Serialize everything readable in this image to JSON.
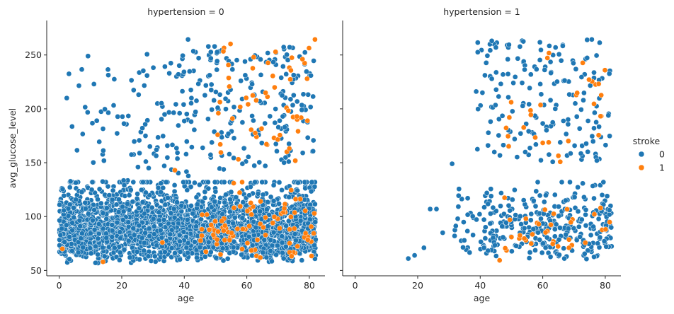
{
  "colors": {
    "no_stroke": "#1f77b4",
    "stroke": "#ff7f0e",
    "axis": "#262626"
  },
  "legend": {
    "title": "stroke",
    "entries": [
      {
        "label": "0",
        "color": "#1f77b4"
      },
      {
        "label": "1",
        "color": "#ff7f0e"
      }
    ]
  },
  "chart_data": [
    {
      "type": "scatter",
      "title": "hypertension = 0",
      "xlabel": "age",
      "ylabel": "avg_glucose_level",
      "xlim": [
        -4,
        85
      ],
      "ylim": [
        45,
        282
      ],
      "xticks": [
        0,
        20,
        40,
        60,
        80
      ],
      "yticks": [
        50,
        100,
        150,
        200,
        250
      ],
      "grid": false,
      "series": [
        {
          "name": "0",
          "color": "#1f77b4",
          "values": []
        },
        {
          "name": "1",
          "color": "#ff7f0e",
          "values": []
        }
      ]
    },
    {
      "type": "scatter",
      "title": "hypertension = 1",
      "xlabel": "age",
      "ylabel": "",
      "xlim": [
        -4,
        85
      ],
      "ylim": [
        45,
        282
      ],
      "xticks": [
        0,
        20,
        40,
        60,
        80
      ],
      "yticks": [
        50,
        100,
        150,
        200,
        250
      ],
      "grid": false,
      "series": [
        {
          "name": "0",
          "color": "#1f77b4",
          "values": []
        },
        {
          "name": "1",
          "color": "#ff7f0e",
          "values": []
        }
      ]
    }
  ]
}
